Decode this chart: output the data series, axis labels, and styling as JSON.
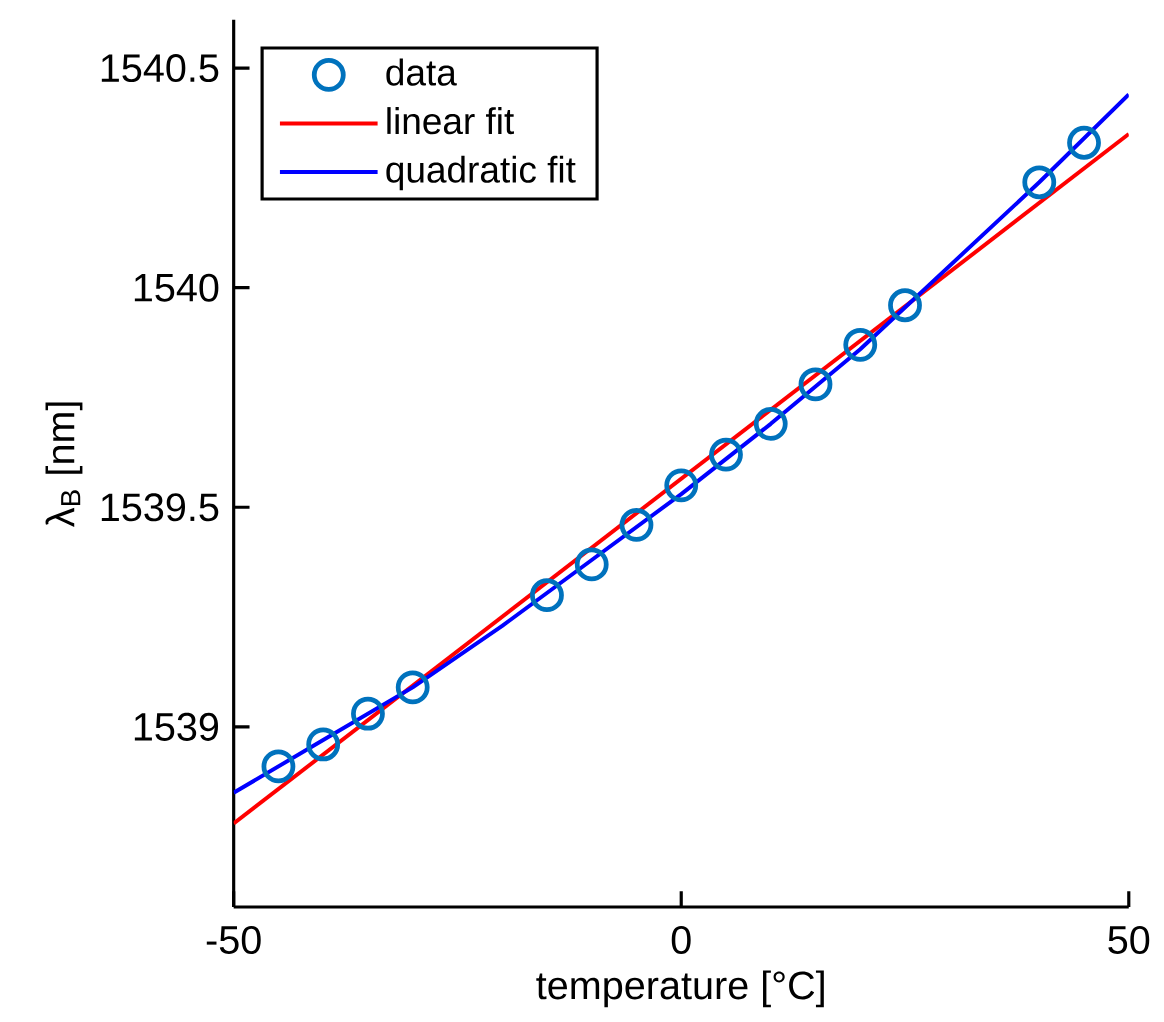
{
  "chart_data": {
    "type": "scatter",
    "xlabel": "temperature [°C]",
    "ylabel": "λ$_{B}$ [nm]",
    "xlim": [
      -50,
      50
    ],
    "xticks": [
      -50,
      0,
      50
    ],
    "ylim": [
      1538.59,
      1540.61
    ],
    "yticks": [
      1539,
      1539.5,
      1540,
      1540.5
    ],
    "grid": false,
    "legend": "top left",
    "series": [
      {
        "name": "data",
        "marker": "circle",
        "color": "#0072bd",
        "x": [
          -45,
          -40,
          -35,
          -30,
          -15,
          -10,
          -5,
          0,
          5,
          10,
          15,
          20,
          25,
          40,
          45
        ],
        "values": [
          1538.91,
          1538.96,
          1539.03,
          1539.09,
          1539.3,
          1539.37,
          1539.46,
          1539.55,
          1539.62,
          1539.69,
          1539.78,
          1539.87,
          1539.96,
          1540.24,
          1540.33
        ]
      },
      {
        "name": "linear fit",
        "type": "line",
        "marker": "none",
        "color": "#ff0000",
        "x": [
          -50,
          50
        ],
        "values": [
          1538.78,
          1540.35
        ]
      },
      {
        "name": "quadratic fit",
        "type": "line",
        "marker": "none",
        "color": "#0000ff",
        "x": [
          -50,
          -40,
          -30,
          -20,
          -10,
          0,
          10,
          20,
          30,
          40,
          50
        ],
        "values": [
          1538.85,
          1538.97,
          1539.09,
          1539.23,
          1539.38,
          1539.53,
          1539.69,
          1539.86,
          1540.05,
          1540.24,
          1540.44
        ]
      }
    ]
  }
}
